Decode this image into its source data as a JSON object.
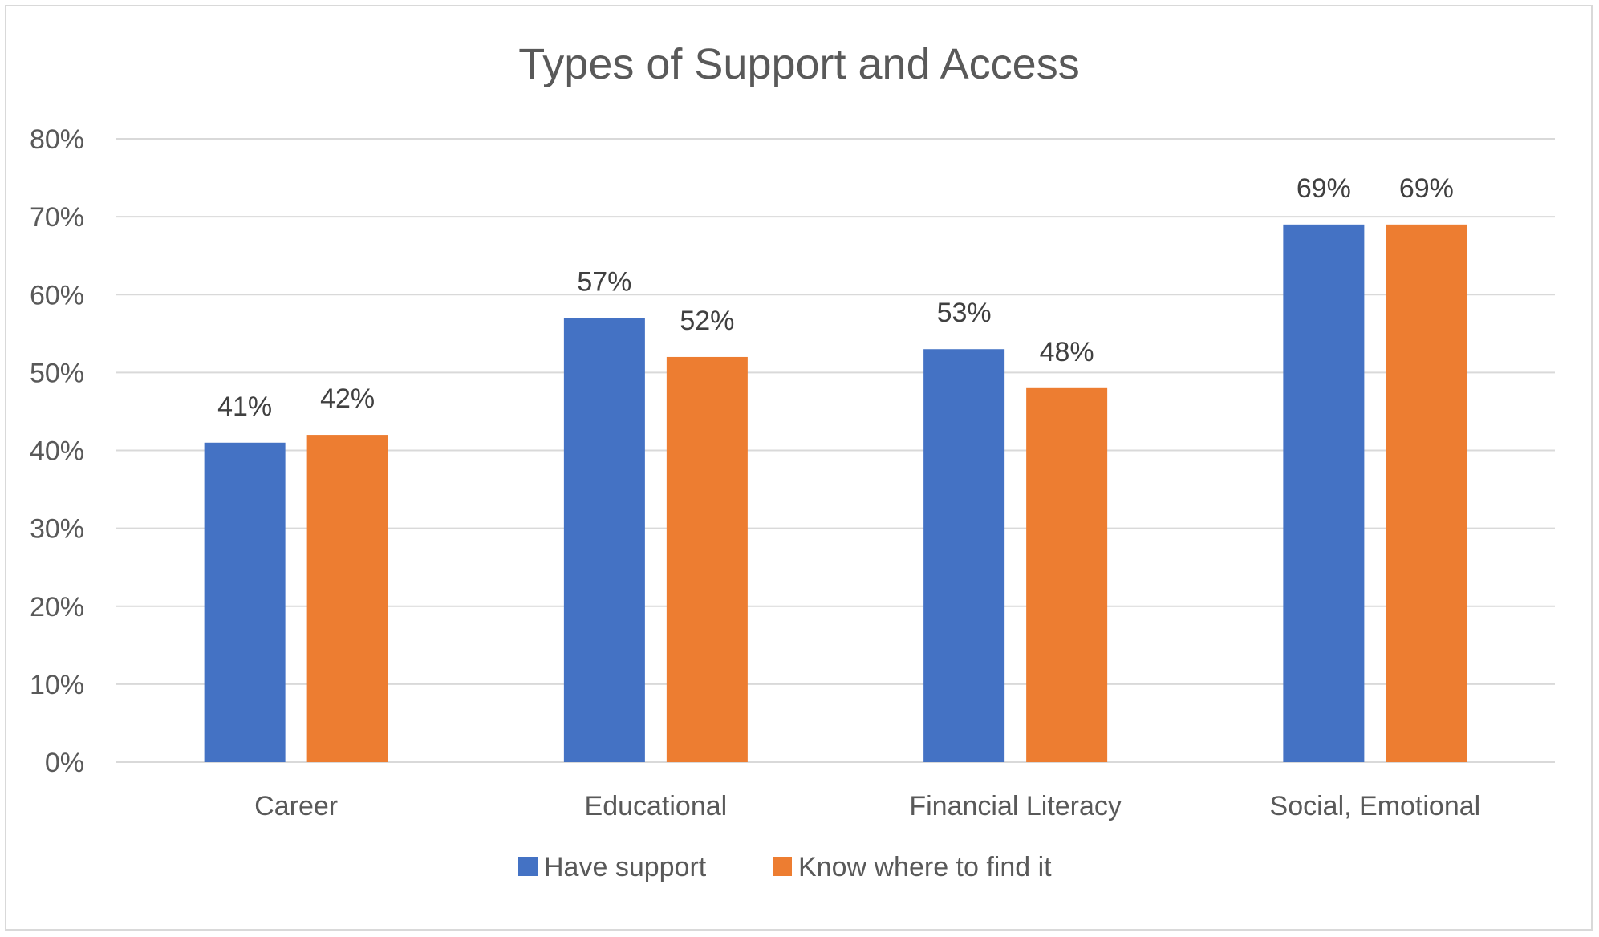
{
  "chart_data": {
    "type": "bar",
    "title": "Types of Support and Access",
    "xlabel": "",
    "ylabel": "",
    "categories": [
      "Career",
      "Educational",
      "Financial Literacy",
      "Social, Emotional"
    ],
    "series": [
      {
        "name": "Have support",
        "values": [
          41,
          57,
          53,
          69
        ],
        "labels": [
          "41%",
          "57%",
          "53%",
          "69%"
        ],
        "color": "#4472c4"
      },
      {
        "name": "Know where to find it",
        "values": [
          42,
          52,
          48,
          69
        ],
        "labels": [
          "42%",
          "52%",
          "48%",
          "69%"
        ],
        "color": "#ed7d31"
      }
    ],
    "ylim": [
      0,
      80
    ],
    "yticks": [
      "0%",
      "10%",
      "20%",
      "30%",
      "40%",
      "50%",
      "60%",
      "70%",
      "80%"
    ],
    "grid": true,
    "gridColor": "#d9d9d9",
    "legend": "bottom"
  }
}
